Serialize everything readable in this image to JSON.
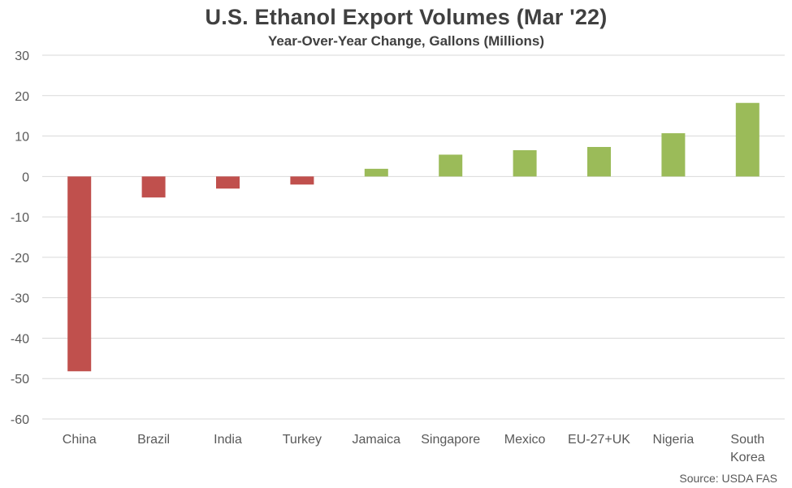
{
  "chart_data": {
    "type": "bar",
    "title": "U.S. Ethanol Export Volumes (Mar '22)",
    "subtitle": "Year-Over-Year Change, Gallons (Millions)",
    "source": "Source: USDA FAS",
    "categories": [
      "China",
      "Brazil",
      "India",
      "Turkey",
      "Jamaica",
      "Singapore",
      "Mexico",
      "EU-27+UK",
      "Nigeria",
      "South Korea"
    ],
    "category_labels": [
      [
        "China"
      ],
      [
        "Brazil"
      ],
      [
        "India"
      ],
      [
        "Turkey"
      ],
      [
        "Jamaica"
      ],
      [
        "Singapore"
      ],
      [
        "Mexico"
      ],
      [
        "EU-27+UK"
      ],
      [
        "Nigeria"
      ],
      [
        "South",
        "Korea"
      ]
    ],
    "values": [
      -48.2,
      -5.2,
      -3.0,
      -2.0,
      1.9,
      5.4,
      6.5,
      7.3,
      10.7,
      18.2
    ],
    "ylim": [
      -60,
      30
    ],
    "yticks": [
      30,
      20,
      10,
      0,
      -10,
      -20,
      -30,
      -40,
      -50,
      -60
    ],
    "grid": true,
    "legend": "none",
    "colors": {
      "positive": "#9bbb59",
      "negative": "#c0504d",
      "grid": "#d9d9d9",
      "text": "#595959",
      "title": "#404040"
    }
  }
}
